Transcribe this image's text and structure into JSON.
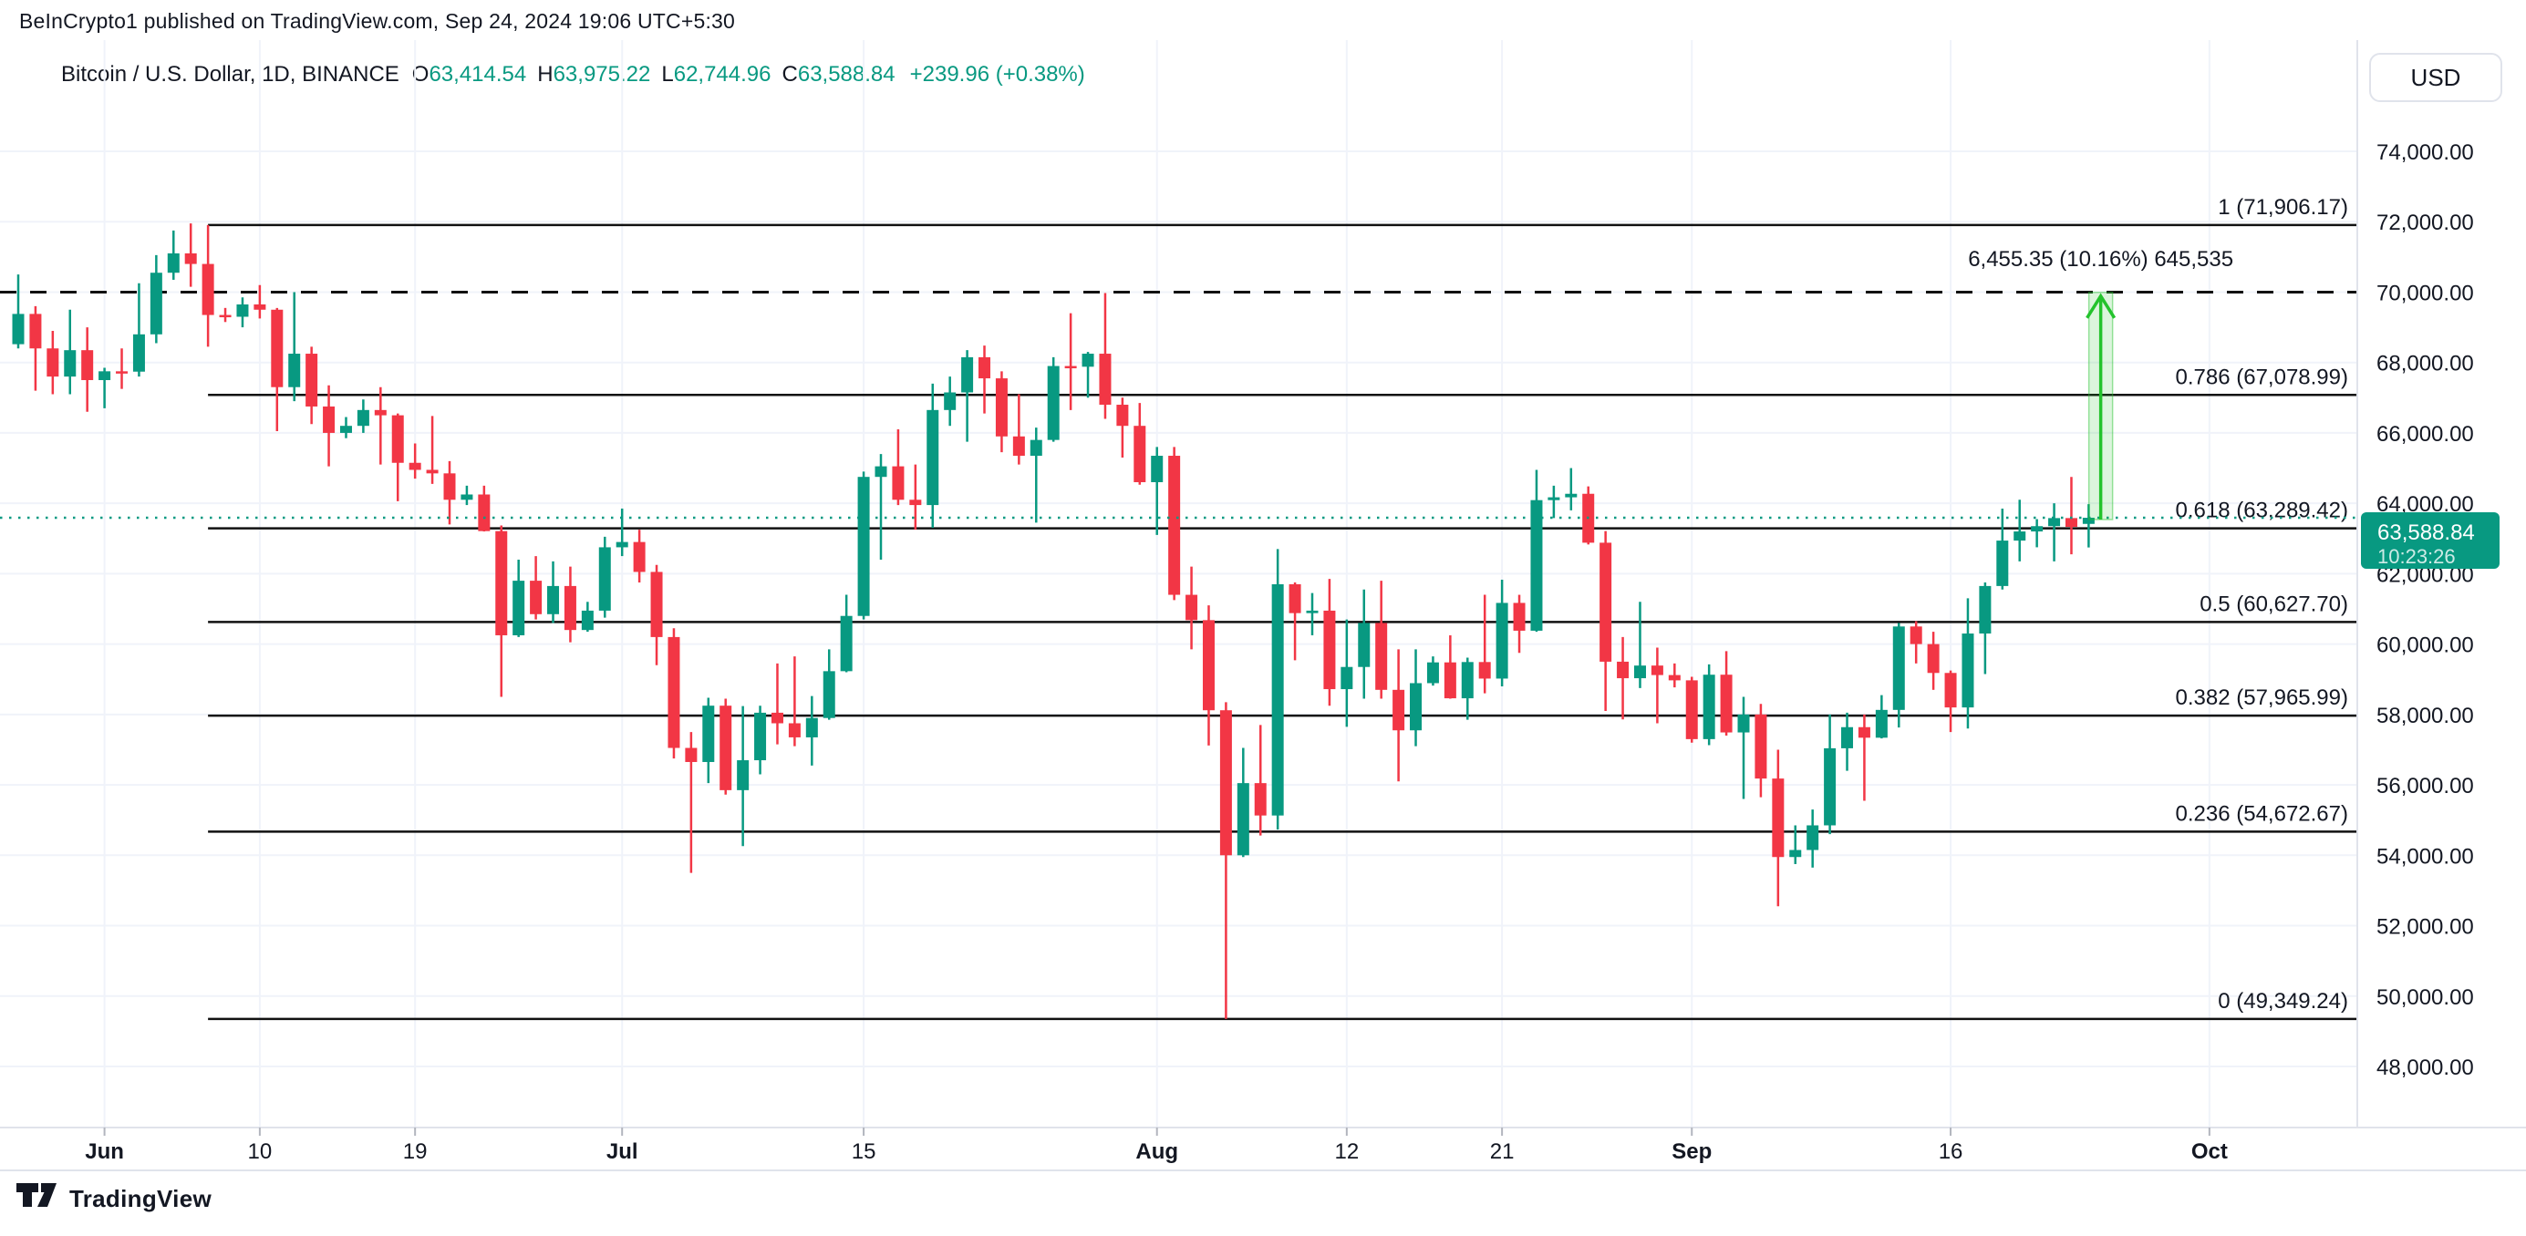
{
  "header": {
    "published_line": "BeInCrypto1 published on TradingView.com, Sep 24, 2024 19:06 UTC+5:30"
  },
  "legend": {
    "symbol": "Bitcoin / U.S. Dollar, 1D, BINANCE",
    "ohlc": [
      {
        "label": "O",
        "value": "63,414.54"
      },
      {
        "label": "H",
        "value": "63,975.22"
      },
      {
        "label": "L",
        "value": "62,744.96"
      },
      {
        "label": "C",
        "value": "63,588.84"
      }
    ],
    "change": "+239.96 (+0.38%)"
  },
  "toolbar": {
    "currency_label": "USD"
  },
  "footer": {
    "brand": "TradingView"
  },
  "colors": {
    "up": "#089981",
    "down": "#f23645",
    "line": "#111111",
    "grid": "#f0f3fa",
    "border": "#e0e3eb",
    "text": "#131722",
    "tick": "#b2b5be",
    "arrow": "#23c32c",
    "arrow_band": "rgba(35,195,44,0.16)",
    "arrow_band_edge": "rgba(35,195,44,0.45)",
    "price_label_bg": "#089981"
  },
  "chart_data": {
    "type": "candlestick",
    "symbol": "Bitcoin / U.S. Dollar",
    "interval": "1D",
    "exchange": "BINANCE",
    "ylim": [
      48000,
      74000
    ],
    "grid": true,
    "y_ticks": [
      {
        "value": 74000,
        "label": "74,000.00"
      },
      {
        "value": 72000,
        "label": "72,000.00"
      },
      {
        "value": 70000,
        "label": "70,000.00"
      },
      {
        "value": 68000,
        "label": "68,000.00"
      },
      {
        "value": 66000,
        "label": "66,000.00"
      },
      {
        "value": 64000,
        "label": "64,000.00"
      },
      {
        "value": 62000,
        "label": "62,000.00"
      },
      {
        "value": 60000,
        "label": "60,000.00"
      },
      {
        "value": 58000,
        "label": "58,000.00"
      },
      {
        "value": 56000,
        "label": "56,000.00"
      },
      {
        "value": 54000,
        "label": "54,000.00"
      },
      {
        "value": 52000,
        "label": "52,000.00"
      },
      {
        "value": 50000,
        "label": "50,000.00"
      },
      {
        "value": 48000,
        "label": "48,000.00"
      }
    ],
    "x_ticks": [
      {
        "label": "Jun",
        "index": 5,
        "major": true
      },
      {
        "label": "10",
        "index": 14,
        "major": false
      },
      {
        "label": "19",
        "index": 23,
        "major": false
      },
      {
        "label": "Jul",
        "index": 35,
        "major": true
      },
      {
        "label": "15",
        "index": 49,
        "major": false
      },
      {
        "label": "Aug",
        "index": 66,
        "major": true
      },
      {
        "label": "12",
        "index": 77,
        "major": false
      },
      {
        "label": "21",
        "index": 86,
        "major": false
      },
      {
        "label": "Sep",
        "index": 97,
        "major": true
      },
      {
        "label": "16",
        "index": 112,
        "major": false
      },
      {
        "label": "Oct",
        "index": 127,
        "major": true
      }
    ],
    "fib_start_index": 11,
    "fib_levels": [
      {
        "level": "1",
        "price": 71906.17,
        "label": "1 (71,906.17)"
      },
      {
        "level": "0.786",
        "price": 67078.99,
        "label": "0.786 (67,078.99)"
      },
      {
        "level": "0.618",
        "price": 63289.42,
        "label": "0.618 (63,289.42)"
      },
      {
        "level": "0.5",
        "price": 60627.7,
        "label": "0.5 (60,627.70)"
      },
      {
        "level": "0.382",
        "price": 57965.99,
        "label": "0.382 (57,965.99)"
      },
      {
        "level": "0.236",
        "price": 54672.67,
        "label": "0.236 (54,672.67)"
      },
      {
        "level": "0",
        "price": 49349.24,
        "label": "0 (49,349.24)"
      }
    ],
    "dashed_line_price": 70000,
    "current_price": {
      "value": 63588.84,
      "label": "63,588.84",
      "countdown": "10:23:26"
    },
    "annotation": {
      "label": "6,455.35 (10.16%) 645,535",
      "from_price": 63537,
      "to_price": 69992,
      "index": 120.7
    },
    "candles_columns": [
      "date",
      "open",
      "high",
      "low",
      "close"
    ],
    "candles": [
      [
        "05-27",
        68520,
        70500,
        68400,
        69380
      ],
      [
        "05-28",
        69380,
        69600,
        67200,
        68400
      ],
      [
        "05-29",
        68400,
        68900,
        67100,
        67600
      ],
      [
        "05-30",
        67600,
        69500,
        67100,
        68350
      ],
      [
        "05-31",
        68350,
        69000,
        66600,
        67500
      ],
      [
        "06-01",
        67500,
        67850,
        66700,
        67750
      ],
      [
        "06-02",
        67750,
        68400,
        67250,
        67740
      ],
      [
        "06-03",
        67740,
        70250,
        67600,
        68800
      ],
      [
        "06-04",
        68800,
        71050,
        68550,
        70550
      ],
      [
        "06-05",
        70550,
        71750,
        70350,
        71100
      ],
      [
        "06-06",
        71100,
        71950,
        70150,
        70800
      ],
      [
        "06-07",
        70800,
        71906,
        68450,
        69350
      ],
      [
        "06-08",
        69350,
        69550,
        69150,
        69300
      ],
      [
        "06-09",
        69300,
        69850,
        69000,
        69650
      ],
      [
        "06-10",
        69650,
        70200,
        69250,
        69500
      ],
      [
        "06-11",
        69500,
        69550,
        66050,
        67300
      ],
      [
        "06-12",
        67300,
        70000,
        66900,
        68250
      ],
      [
        "06-13",
        68250,
        68450,
        66250,
        66750
      ],
      [
        "06-14",
        66750,
        67350,
        65050,
        66000
      ],
      [
        "06-15",
        66000,
        66450,
        65850,
        66200
      ],
      [
        "06-16",
        66200,
        66950,
        66000,
        66650
      ],
      [
        "06-17",
        66650,
        67300,
        65100,
        66500
      ],
      [
        "06-18",
        66500,
        66550,
        64060,
        65150
      ],
      [
        "06-19",
        65150,
        65700,
        64700,
        64950
      ],
      [
        "06-20",
        64950,
        66480,
        64550,
        64850
      ],
      [
        "06-21",
        64850,
        65200,
        63400,
        64100
      ],
      [
        "06-22",
        64100,
        64500,
        63950,
        64250
      ],
      [
        "06-23",
        64250,
        64500,
        63200,
        63210
      ],
      [
        "06-24",
        63210,
        63370,
        58500,
        60250
      ],
      [
        "06-25",
        60250,
        62400,
        60200,
        61800
      ],
      [
        "06-26",
        61800,
        62500,
        60700,
        60850
      ],
      [
        "06-27",
        60850,
        62350,
        60600,
        61650
      ],
      [
        "06-28",
        61650,
        62200,
        60050,
        60400
      ],
      [
        "06-29",
        60400,
        61200,
        60350,
        60950
      ],
      [
        "06-30",
        60950,
        63050,
        60750,
        62750
      ],
      [
        "07-01",
        62750,
        63850,
        62500,
        62900
      ],
      [
        "07-02",
        62900,
        63250,
        61750,
        62050
      ],
      [
        "07-03",
        62050,
        62250,
        59400,
        60200
      ],
      [
        "07-04",
        60200,
        60450,
        56750,
        57050
      ],
      [
        "07-05",
        57050,
        57500,
        53500,
        56650
      ],
      [
        "07-06",
        56650,
        58475,
        56050,
        58250
      ],
      [
        "07-07",
        58250,
        58450,
        55725,
        55850
      ],
      [
        "07-08",
        55850,
        58240,
        54260,
        56700
      ],
      [
        "07-09",
        56700,
        58250,
        56300,
        58050
      ],
      [
        "07-10",
        58050,
        59450,
        57150,
        57750
      ],
      [
        "07-11",
        57750,
        59650,
        57100,
        57350
      ],
      [
        "07-12",
        57350,
        58525,
        56550,
        57900
      ],
      [
        "07-13",
        57900,
        59850,
        57850,
        59230
      ],
      [
        "07-14",
        59230,
        61400,
        59200,
        60800
      ],
      [
        "07-15",
        60800,
        64900,
        60700,
        64750
      ],
      [
        "07-16",
        64750,
        65400,
        62400,
        65050
      ],
      [
        "07-17",
        65050,
        66100,
        63950,
        64100
      ],
      [
        "07-18",
        64100,
        65100,
        63250,
        63950
      ],
      [
        "07-19",
        63950,
        67400,
        63300,
        66650
      ],
      [
        "07-20",
        66650,
        67600,
        66200,
        67150
      ],
      [
        "07-21",
        67150,
        68350,
        65750,
        68150
      ],
      [
        "07-22",
        68150,
        68480,
        66550,
        67550
      ],
      [
        "07-23",
        67550,
        67750,
        65450,
        65900
      ],
      [
        "07-24",
        65900,
        67100,
        65100,
        65350
      ],
      [
        "07-25",
        65350,
        66150,
        63450,
        65800
      ],
      [
        "07-26",
        65800,
        68150,
        65750,
        67900
      ],
      [
        "07-27",
        67900,
        69400,
        66650,
        67880
      ],
      [
        "07-28",
        67880,
        68300,
        67000,
        68250
      ],
      [
        "07-29",
        68250,
        69973,
        66400,
        66800
      ],
      [
        "07-30",
        66800,
        67000,
        65300,
        66200
      ],
      [
        "07-31",
        66200,
        66850,
        64530,
        64600
      ],
      [
        "08-01",
        64600,
        65600,
        63100,
        65350
      ],
      [
        "08-02",
        65350,
        65600,
        61250,
        61400
      ],
      [
        "08-03",
        61400,
        62200,
        59850,
        60680
      ],
      [
        "08-04",
        60680,
        61100,
        57120,
        58120
      ],
      [
        "08-05",
        58120,
        58350,
        49350,
        54000
      ],
      [
        "08-06",
        54000,
        57050,
        53950,
        56050
      ],
      [
        "08-07",
        56050,
        57700,
        54560,
        55130
      ],
      [
        "08-08",
        55130,
        62700,
        54730,
        61700
      ],
      [
        "08-09",
        61700,
        61750,
        59540,
        60880
      ],
      [
        "08-10",
        60880,
        61450,
        60250,
        60950
      ],
      [
        "08-11",
        60950,
        61850,
        58250,
        58720
      ],
      [
        "08-12",
        58720,
        60700,
        57650,
        59350
      ],
      [
        "08-13",
        59350,
        61550,
        58450,
        60600
      ],
      [
        "08-14",
        60600,
        61800,
        58450,
        58700
      ],
      [
        "08-15",
        58700,
        59850,
        56100,
        57550
      ],
      [
        "08-16",
        57550,
        59850,
        57100,
        58890
      ],
      [
        "08-17",
        58890,
        59650,
        58820,
        59480
      ],
      [
        "08-18",
        59480,
        60250,
        58450,
        58460
      ],
      [
        "08-19",
        58460,
        59615,
        57850,
        59490
      ],
      [
        "08-20",
        59490,
        61400,
        58600,
        59020
      ],
      [
        "08-21",
        59020,
        61830,
        58800,
        61170
      ],
      [
        "08-22",
        61170,
        61400,
        59750,
        60380
      ],
      [
        "08-23",
        60380,
        64950,
        60350,
        64090
      ],
      [
        "08-24",
        64090,
        64500,
        63580,
        64170
      ],
      [
        "08-25",
        64170,
        65000,
        63800,
        64270
      ],
      [
        "08-26",
        64270,
        64480,
        62830,
        62880
      ],
      [
        "08-27",
        62880,
        63210,
        58100,
        59500
      ],
      [
        "08-28",
        59500,
        60200,
        57860,
        59030
      ],
      [
        "08-29",
        59030,
        61200,
        58750,
        59390
      ],
      [
        "08-30",
        59390,
        59900,
        57750,
        59120
      ],
      [
        "08-31",
        59120,
        59450,
        58770,
        58970
      ],
      [
        "09-01",
        58970,
        59070,
        57200,
        57300
      ],
      [
        "09-02",
        57300,
        59425,
        57130,
        59130
      ],
      [
        "09-03",
        59130,
        59800,
        57400,
        57490
      ],
      [
        "09-04",
        57490,
        58500,
        55600,
        58000
      ],
      [
        "09-05",
        58000,
        58300,
        55650,
        56180
      ],
      [
        "09-06",
        56180,
        57000,
        52550,
        53950
      ],
      [
        "09-07",
        53950,
        54850,
        53750,
        54150
      ],
      [
        "09-08",
        54150,
        55300,
        53650,
        54850
      ],
      [
        "09-09",
        54850,
        58000,
        54600,
        57040
      ],
      [
        "09-10",
        57040,
        58050,
        56400,
        57640
      ],
      [
        "09-11",
        57640,
        58000,
        55550,
        57340
      ],
      [
        "09-12",
        57340,
        58550,
        57320,
        58130
      ],
      [
        "09-13",
        58130,
        60600,
        57630,
        60500
      ],
      [
        "09-14",
        60500,
        60650,
        59450,
        60000
      ],
      [
        "09-15",
        60000,
        60350,
        58700,
        59180
      ],
      [
        "09-16",
        59180,
        59250,
        57500,
        58200
      ],
      [
        "09-17",
        58200,
        61300,
        57600,
        60300
      ],
      [
        "09-18",
        60300,
        61750,
        59150,
        61650
      ],
      [
        "09-19",
        61650,
        63850,
        61550,
        62940
      ],
      [
        "09-20",
        62940,
        64100,
        62350,
        63200
      ],
      [
        "09-21",
        63200,
        63550,
        62750,
        63350
      ],
      [
        "09-22",
        63350,
        64000,
        62350,
        63580
      ],
      [
        "09-23",
        63580,
        64750,
        62550,
        63330
      ],
      [
        "09-24",
        63414.54,
        63975.22,
        62744.96,
        63588.84
      ]
    ]
  }
}
